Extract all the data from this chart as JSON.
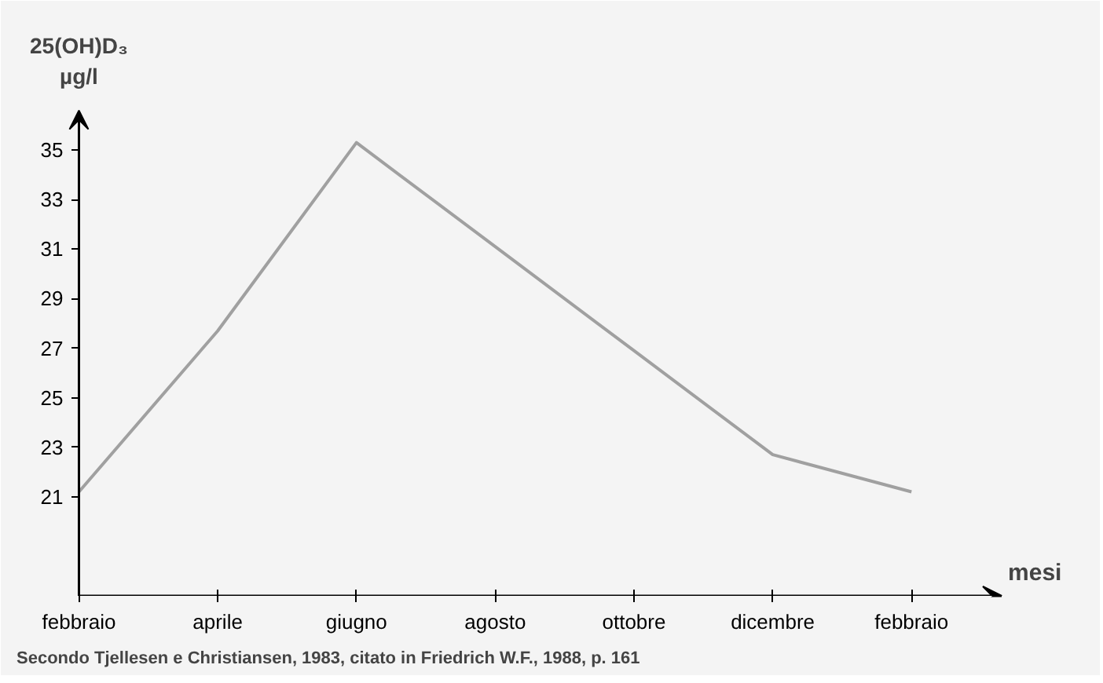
{
  "chart_data": {
    "type": "line",
    "ylabel": "25(OH)D₃\nµg/l",
    "xlabel": "mesi",
    "categories": [
      "febbraio",
      "aprile",
      "giugno",
      "agosto",
      "ottobre",
      "dicembre",
      "febbraio"
    ],
    "series": [
      {
        "color": "#a0a0a0",
        "values": [
          21.2,
          27.7,
          35.3,
          31.1,
          26.9,
          22.7,
          21.2
        ]
      }
    ],
    "ylim": [
      17,
      36.6
    ],
    "yticks": [
      21,
      23,
      25,
      27,
      29,
      31,
      33,
      35
    ],
    "grid": false,
    "marker": "none",
    "line_style": "solid",
    "annotations": [
      "Secondo Tjellesen e Christiansen, 1983, citato in Friedrich W.F., 1988, p. 161"
    ]
  }
}
